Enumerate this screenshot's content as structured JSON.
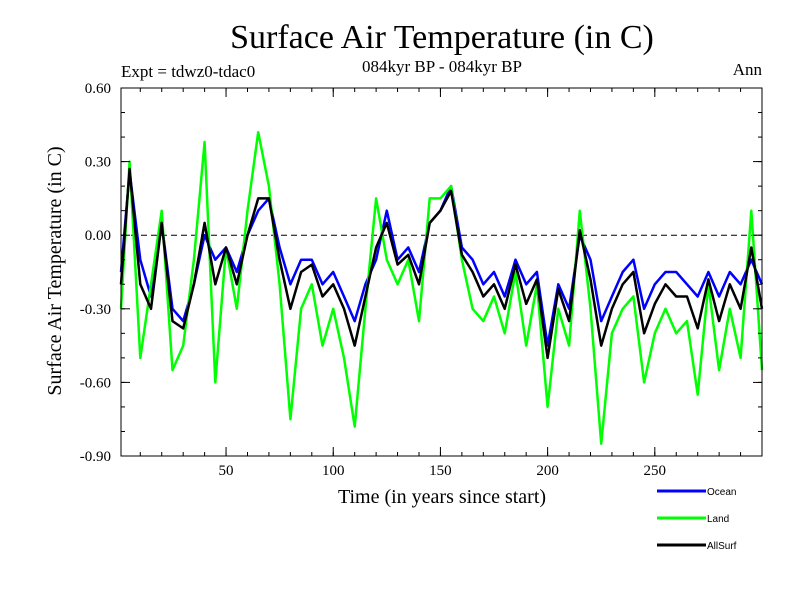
{
  "chart_data": {
    "type": "line",
    "title": "Surface Air Temperature (in C)",
    "subtitle_left": "Expt = tdwz0-tdac0",
    "subtitle_center": "084kyr BP - 084kyr BP",
    "subtitle_right": "Ann",
    "xlabel": "Time (in years since start)",
    "ylabel": "Surface Air Temperature (in C)",
    "xlim": [
      1,
      300
    ],
    "ylim": [
      -0.9,
      0.6
    ],
    "x_ticks": [
      50,
      100,
      150,
      200,
      250
    ],
    "x_tick_labels": [
      "50",
      "100",
      "150",
      "200",
      "250"
    ],
    "y_ticks": [
      -0.9,
      -0.6,
      -0.3,
      0.0,
      0.3,
      0.6
    ],
    "y_tick_labels": [
      "-0.90",
      "-0.60",
      "-0.30",
      "0.00",
      "0.30",
      "0.60"
    ],
    "zero_line": true,
    "grid": false,
    "legend_position": "bottom-right",
    "series": [
      {
        "name": "Ocean",
        "color": "#0000ff",
        "x": [
          1,
          5,
          10,
          15,
          20,
          25,
          30,
          35,
          40,
          45,
          50,
          55,
          60,
          65,
          70,
          75,
          80,
          85,
          90,
          95,
          100,
          105,
          110,
          115,
          120,
          125,
          130,
          135,
          140,
          145,
          150,
          155,
          160,
          165,
          170,
          175,
          180,
          185,
          190,
          195,
          200,
          205,
          210,
          215,
          220,
          225,
          230,
          235,
          240,
          245,
          250,
          255,
          260,
          265,
          270,
          275,
          280,
          285,
          290,
          295,
          300
        ],
        "values": [
          -0.15,
          0.26,
          -0.1,
          -0.25,
          0.05,
          -0.3,
          -0.35,
          -0.2,
          0.0,
          -0.1,
          -0.05,
          -0.15,
          0.0,
          0.1,
          0.15,
          -0.05,
          -0.2,
          -0.1,
          -0.1,
          -0.2,
          -0.15,
          -0.25,
          -0.35,
          -0.2,
          -0.1,
          0.1,
          -0.1,
          -0.05,
          -0.15,
          0.05,
          0.1,
          0.2,
          -0.05,
          -0.1,
          -0.2,
          -0.15,
          -0.25,
          -0.1,
          -0.2,
          -0.15,
          -0.45,
          -0.2,
          -0.3,
          0.0,
          -0.1,
          -0.35,
          -0.25,
          -0.15,
          -0.1,
          -0.3,
          -0.2,
          -0.15,
          -0.15,
          -0.2,
          -0.25,
          -0.15,
          -0.25,
          -0.15,
          -0.2,
          -0.1,
          -0.2
        ]
      },
      {
        "name": "Land",
        "color": "#00ff00",
        "x": [
          1,
          5,
          10,
          15,
          20,
          25,
          30,
          35,
          40,
          45,
          50,
          55,
          60,
          65,
          70,
          75,
          80,
          85,
          90,
          95,
          100,
          105,
          110,
          115,
          120,
          125,
          130,
          135,
          140,
          145,
          150,
          155,
          160,
          165,
          170,
          175,
          180,
          185,
          190,
          195,
          200,
          205,
          210,
          215,
          220,
          225,
          230,
          235,
          240,
          245,
          250,
          255,
          260,
          265,
          270,
          275,
          280,
          285,
          290,
          295,
          300
        ],
        "values": [
          -0.3,
          0.3,
          -0.5,
          -0.2,
          0.1,
          -0.55,
          -0.45,
          -0.1,
          0.38,
          -0.6,
          -0.05,
          -0.3,
          0.1,
          0.42,
          0.2,
          -0.2,
          -0.75,
          -0.3,
          -0.2,
          -0.45,
          -0.3,
          -0.5,
          -0.78,
          -0.3,
          0.15,
          -0.1,
          -0.2,
          -0.1,
          -0.35,
          0.15,
          0.15,
          0.2,
          -0.1,
          -0.3,
          -0.35,
          -0.25,
          -0.4,
          -0.15,
          -0.45,
          -0.2,
          -0.7,
          -0.3,
          -0.45,
          0.1,
          -0.3,
          -0.85,
          -0.4,
          -0.3,
          -0.25,
          -0.6,
          -0.4,
          -0.3,
          -0.4,
          -0.35,
          -0.65,
          -0.2,
          -0.55,
          -0.3,
          -0.5,
          0.1,
          -0.55
        ]
      },
      {
        "name": "AllSurf",
        "color": "#000000",
        "x": [
          1,
          5,
          10,
          15,
          20,
          25,
          30,
          35,
          40,
          45,
          50,
          55,
          60,
          65,
          70,
          75,
          80,
          85,
          90,
          95,
          100,
          105,
          110,
          115,
          120,
          125,
          130,
          135,
          140,
          145,
          150,
          155,
          160,
          165,
          170,
          175,
          180,
          185,
          190,
          195,
          200,
          205,
          210,
          215,
          220,
          225,
          230,
          235,
          240,
          245,
          250,
          255,
          260,
          265,
          270,
          275,
          280,
          285,
          290,
          295,
          300
        ],
        "values": [
          -0.2,
          0.27,
          -0.2,
          -0.3,
          0.05,
          -0.35,
          -0.38,
          -0.2,
          0.05,
          -0.2,
          -0.05,
          -0.2,
          0.0,
          0.15,
          0.15,
          -0.1,
          -0.3,
          -0.15,
          -0.12,
          -0.25,
          -0.2,
          -0.3,
          -0.45,
          -0.25,
          -0.05,
          0.05,
          -0.12,
          -0.08,
          -0.2,
          0.05,
          0.1,
          0.18,
          -0.08,
          -0.15,
          -0.25,
          -0.2,
          -0.3,
          -0.12,
          -0.28,
          -0.18,
          -0.5,
          -0.22,
          -0.35,
          0.02,
          -0.18,
          -0.45,
          -0.3,
          -0.2,
          -0.15,
          -0.4,
          -0.28,
          -0.2,
          -0.25,
          -0.25,
          -0.38,
          -0.18,
          -0.35,
          -0.2,
          -0.3,
          -0.05,
          -0.3
        ]
      }
    ]
  }
}
